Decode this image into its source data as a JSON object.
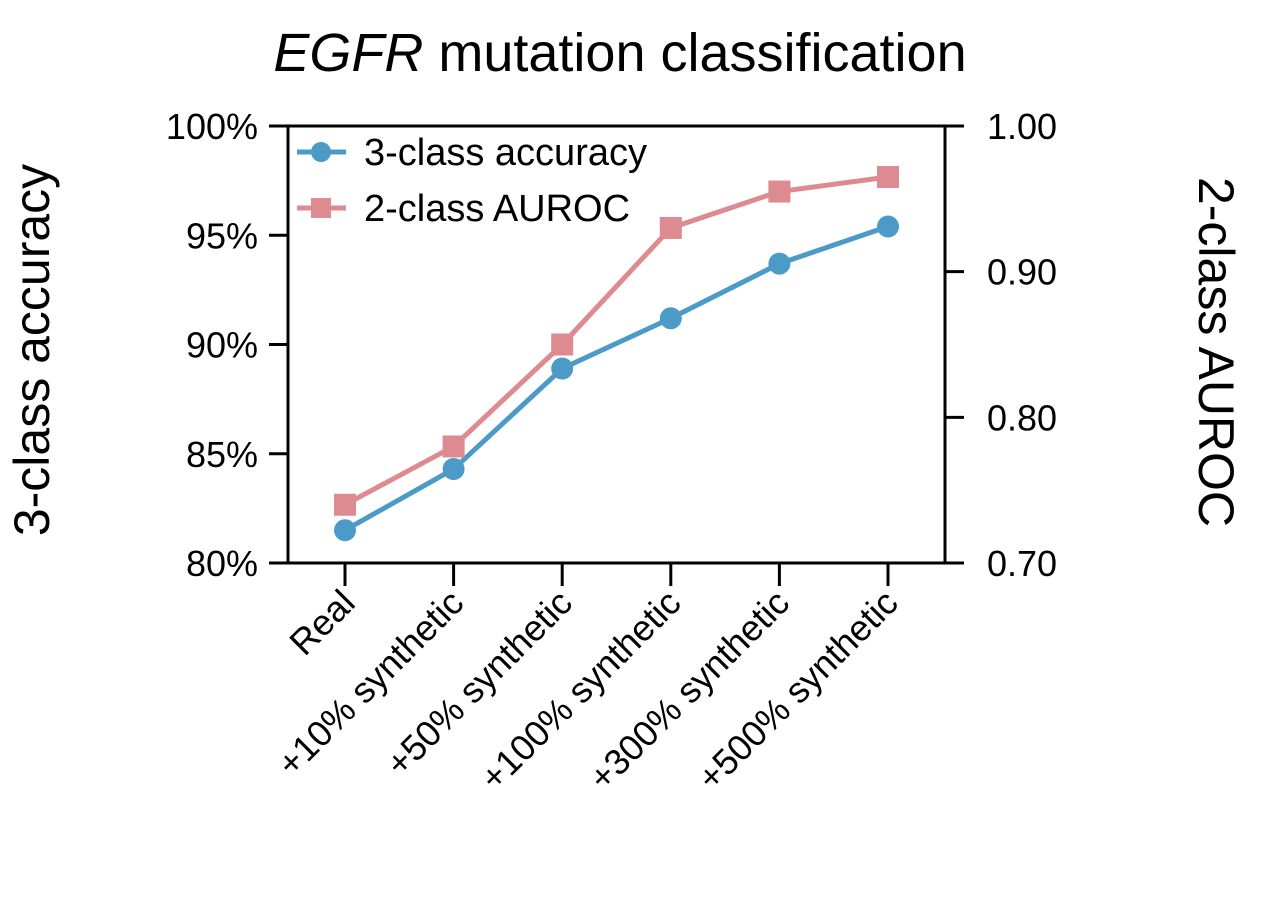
{
  "chart_data": {
    "type": "line",
    "title": {
      "italic": "EGFR",
      "rest": " mutation classification"
    },
    "categories": [
      "Real",
      "+10% synthetic",
      "+50% synthetic",
      "+100% synthetic",
      "+300% synthetic",
      "+500% synthetic"
    ],
    "series": [
      {
        "name": "3-class accuracy",
        "axis": "left",
        "marker": "circle",
        "color": "#4c9ac8",
        "values": [
          81.5,
          84.3,
          88.9,
          91.2,
          93.7,
          95.4
        ]
      },
      {
        "name": "2-class AUROC",
        "axis": "right",
        "marker": "square",
        "color": "#dd8a91",
        "values": [
          0.74,
          0.78,
          0.85,
          0.93,
          0.955,
          0.965
        ]
      }
    ],
    "left_axis": {
      "label": "3-class accuracy",
      "min": 80,
      "max": 100,
      "ticks": [
        {
          "value": 100,
          "label": "100%"
        },
        {
          "value": 95,
          "label": "95%"
        },
        {
          "value": 90,
          "label": "90%"
        },
        {
          "value": 85,
          "label": "85%"
        },
        {
          "value": 80,
          "label": "80%"
        }
      ]
    },
    "right_axis": {
      "label": "2-class AUROC",
      "min": 0.7,
      "max": 1.0,
      "ticks": [
        {
          "value": 1.0,
          "label": "1.00"
        },
        {
          "value": 0.9,
          "label": "0.90"
        },
        {
          "value": 0.8,
          "label": "0.80"
        },
        {
          "value": 0.7,
          "label": "0.70"
        }
      ]
    },
    "legend": {
      "position": "upper-left-inside",
      "entries": [
        "3-class accuracy",
        "2-class AUROC"
      ]
    },
    "grid": false,
    "x_tick_rotation_deg": 45,
    "axis_color": "#000000",
    "background_color": "#ffffff"
  }
}
